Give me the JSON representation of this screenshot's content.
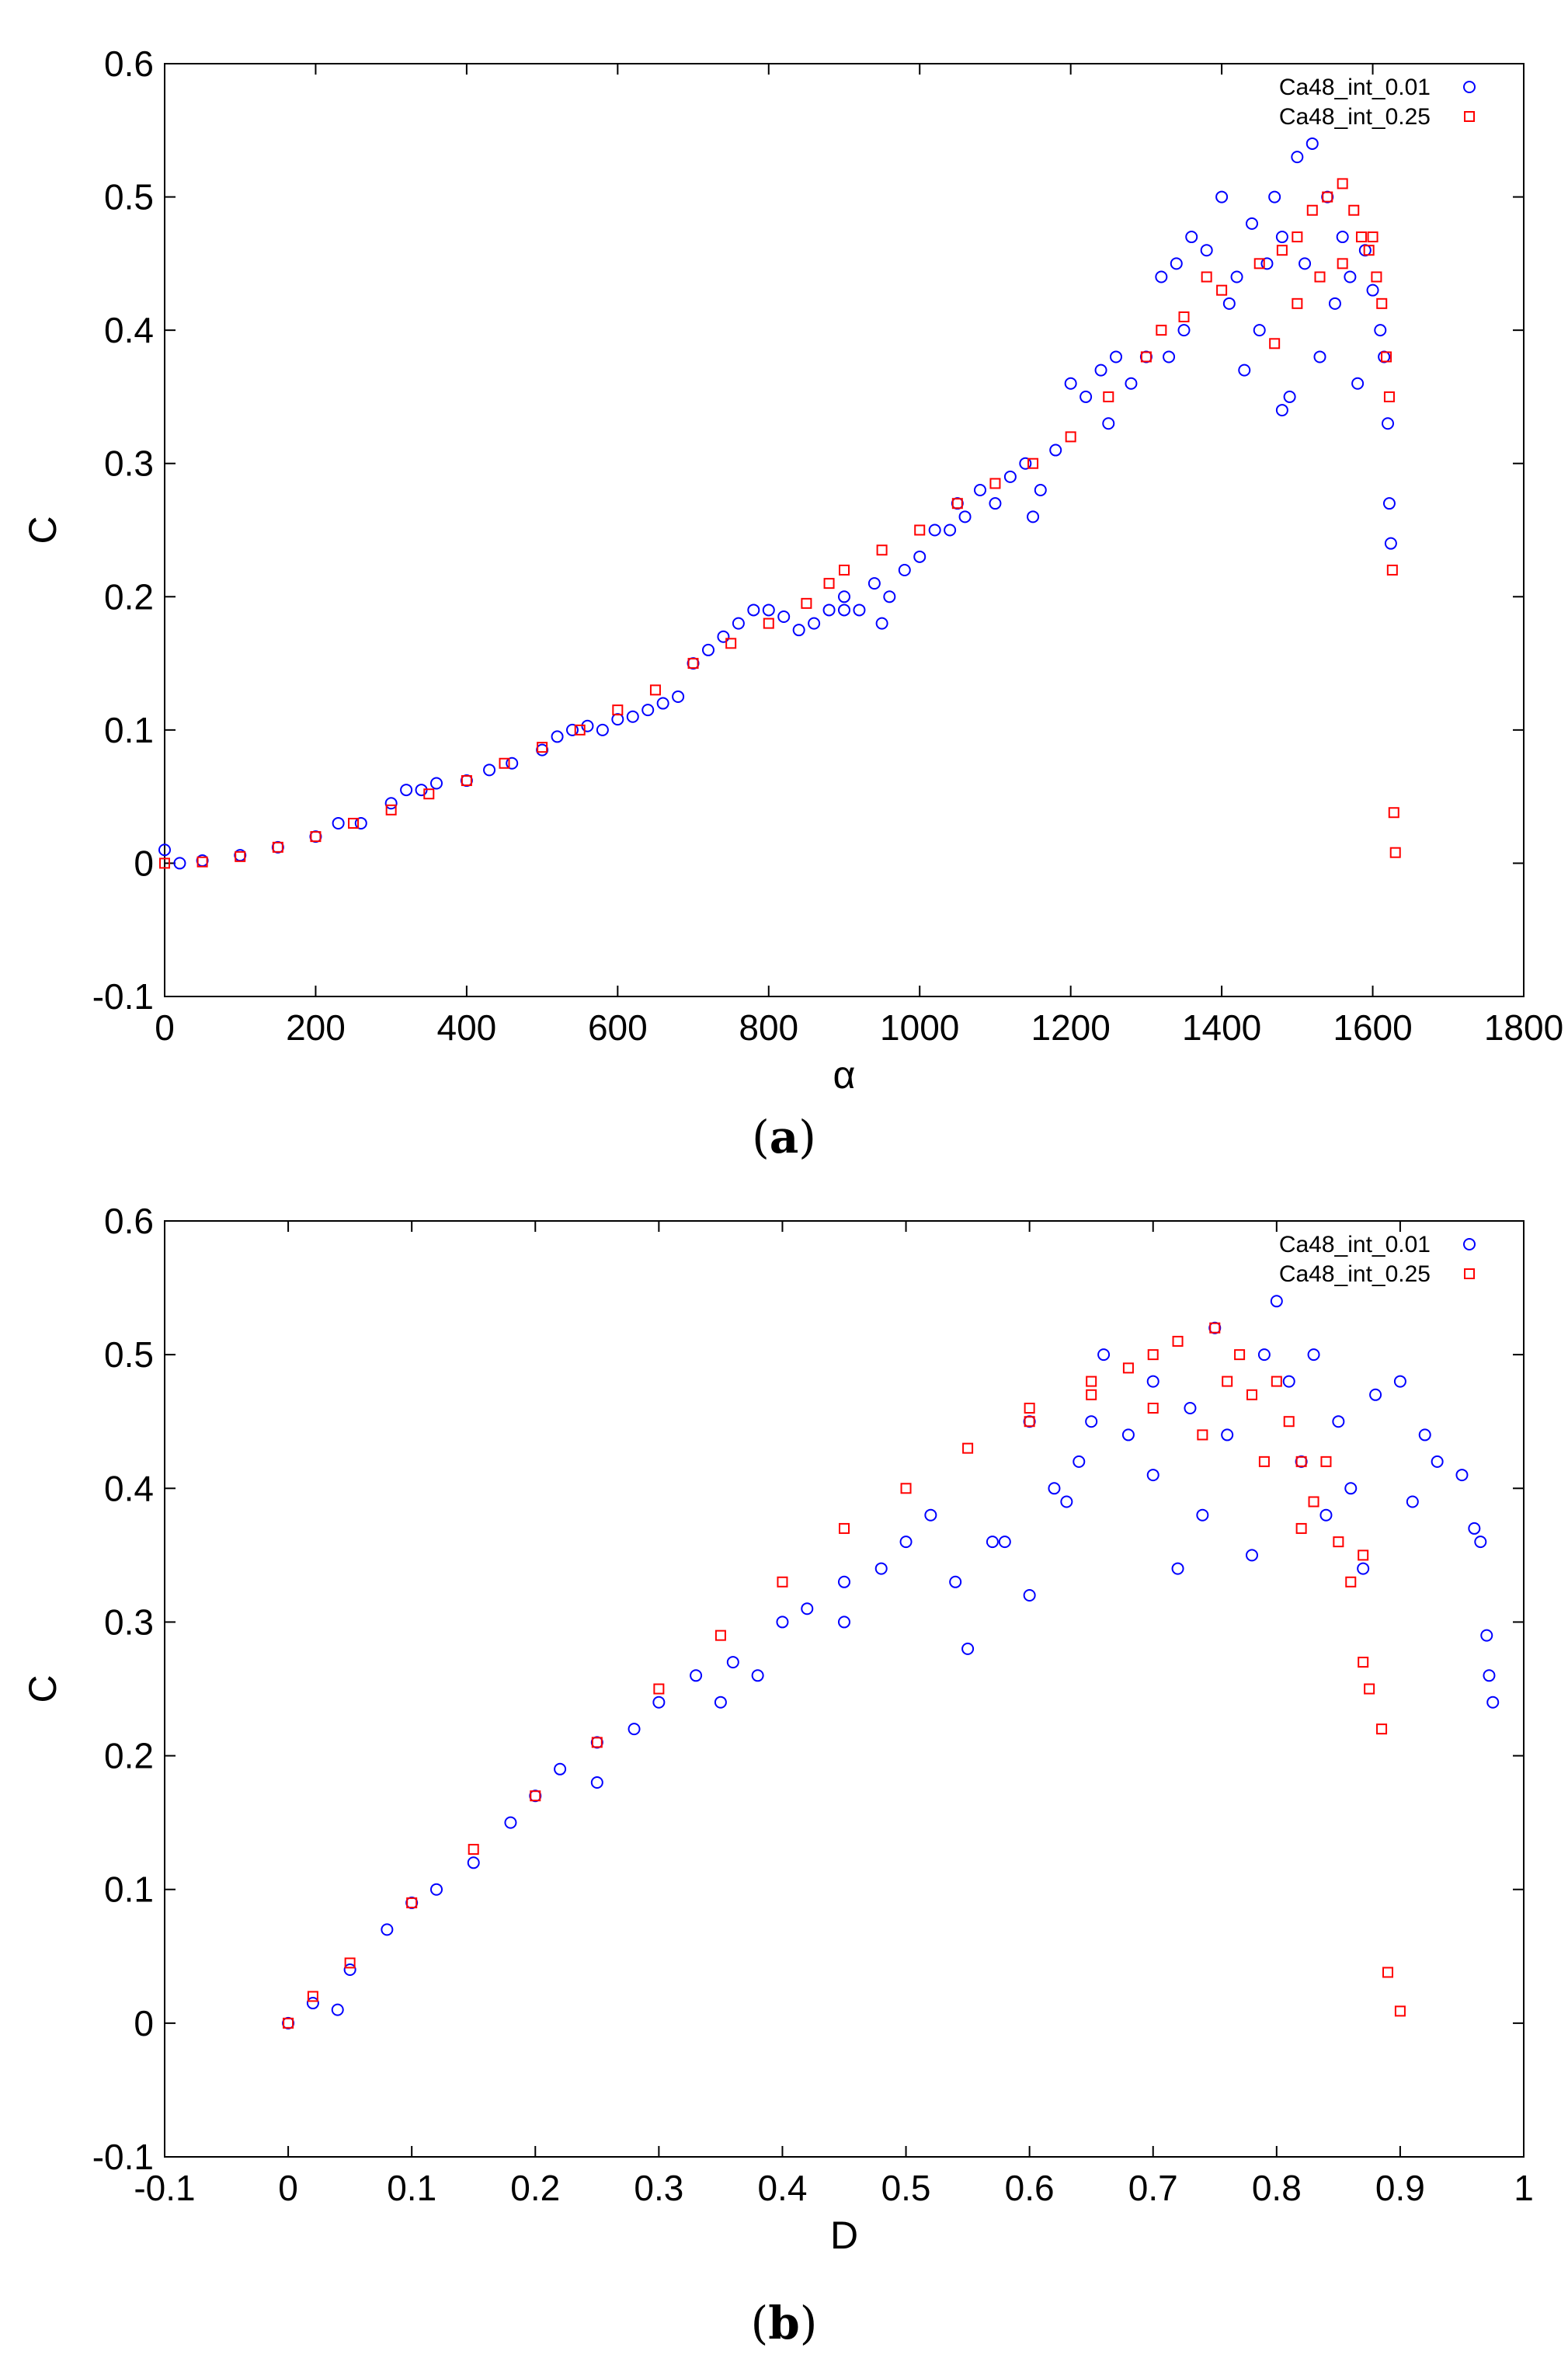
{
  "chart_data": [
    {
      "id": "a",
      "type": "scatter",
      "caption_letter": "a",
      "xlabel": "α",
      "ylabel": "C",
      "xlim": [
        0,
        1800
      ],
      "ylim": [
        -0.1,
        0.6
      ],
      "xticks": [
        0,
        200,
        400,
        600,
        800,
        1000,
        1200,
        1400,
        1600,
        1800
      ],
      "yticks": [
        -0.1,
        0,
        0.1,
        0.2,
        0.3,
        0.4,
        0.5,
        0.6
      ],
      "xtick_labels": [
        "0",
        "200",
        "400",
        "600",
        "800",
        "1000",
        "1200",
        "1400",
        "1600",
        "1800"
      ],
      "ytick_labels": [
        "-0.1",
        "0",
        "0.1",
        "0.2",
        "0.3",
        "0.4",
        "0.5",
        "0.6"
      ],
      "grid": false,
      "legend_position": "top-right",
      "series": [
        {
          "name": "Ca48_int_0.01",
          "marker": "circle",
          "color": "#0000ff",
          "points": [
            [
              0,
              0.01
            ],
            [
              20,
              0.0
            ],
            [
              50,
              0.002
            ],
            [
              100,
              0.006
            ],
            [
              150,
              0.012
            ],
            [
              200,
              0.02
            ],
            [
              230,
              0.03
            ],
            [
              260,
              0.03
            ],
            [
              300,
              0.045
            ],
            [
              320,
              0.055
            ],
            [
              340,
              0.055
            ],
            [
              360,
              0.06
            ],
            [
              400,
              0.062
            ],
            [
              430,
              0.07
            ],
            [
              460,
              0.075
            ],
            [
              500,
              0.085
            ],
            [
              520,
              0.095
            ],
            [
              540,
              0.1
            ],
            [
              560,
              0.103
            ],
            [
              580,
              0.1
            ],
            [
              600,
              0.108
            ],
            [
              620,
              0.11
            ],
            [
              640,
              0.115
            ],
            [
              660,
              0.12
            ],
            [
              680,
              0.125
            ],
            [
              700,
              0.15
            ],
            [
              720,
              0.16
            ],
            [
              740,
              0.17
            ],
            [
              760,
              0.18
            ],
            [
              780,
              0.19
            ],
            [
              800,
              0.19
            ],
            [
              820,
              0.185
            ],
            [
              840,
              0.175
            ],
            [
              860,
              0.18
            ],
            [
              880,
              0.19
            ],
            [
              900,
              0.2
            ],
            [
              920,
              0.19
            ],
            [
              940,
              0.21
            ],
            [
              960,
              0.2
            ],
            [
              980,
              0.22
            ],
            [
              1000,
              0.23
            ],
            [
              1020,
              0.25
            ],
            [
              1040,
              0.25
            ],
            [
              1060,
              0.26
            ],
            [
              1080,
              0.28
            ],
            [
              1100,
              0.27
            ],
            [
              1120,
              0.29
            ],
            [
              1140,
              0.3
            ],
            [
              1160,
              0.28
            ],
            [
              1180,
              0.31
            ],
            [
              1200,
              0.36
            ],
            [
              1220,
              0.35
            ],
            [
              1240,
              0.37
            ],
            [
              1260,
              0.38
            ],
            [
              1280,
              0.36
            ],
            [
              1300,
              0.38
            ],
            [
              1320,
              0.44
            ],
            [
              1330,
              0.38
            ],
            [
              1340,
              0.45
            ],
            [
              1360,
              0.47
            ],
            [
              1380,
              0.46
            ],
            [
              1400,
              0.5
            ],
            [
              1410,
              0.42
            ],
            [
              1420,
              0.44
            ],
            [
              1440,
              0.48
            ],
            [
              1450,
              0.4
            ],
            [
              1460,
              0.45
            ],
            [
              1470,
              0.5
            ],
            [
              1480,
              0.47
            ],
            [
              1490,
              0.35
            ],
            [
              1500,
              0.53
            ],
            [
              1510,
              0.45
            ],
            [
              1520,
              0.54
            ],
            [
              1530,
              0.38
            ],
            [
              1540,
              0.5
            ],
            [
              1550,
              0.42
            ],
            [
              1560,
              0.47
            ],
            [
              1570,
              0.44
            ],
            [
              1580,
              0.36
            ],
            [
              1590,
              0.46
            ],
            [
              1600,
              0.43
            ],
            [
              1610,
              0.4
            ],
            [
              1615,
              0.38
            ],
            [
              1620,
              0.33
            ],
            [
              1622,
              0.27
            ],
            [
              1624,
              0.24
            ],
            [
              1050,
              0.27
            ],
            [
              1150,
              0.26
            ],
            [
              1250,
              0.33
            ],
            [
              1350,
              0.4
            ],
            [
              1430,
              0.37
            ],
            [
              1480,
              0.34
            ],
            [
              900,
              0.19
            ],
            [
              950,
              0.18
            ]
          ]
        },
        {
          "name": "Ca48_int_0.25",
          "marker": "square",
          "color": "#ff0000",
          "points": [
            [
              0,
              0.0
            ],
            [
              50,
              0.001
            ],
            [
              100,
              0.005
            ],
            [
              150,
              0.012
            ],
            [
              200,
              0.02
            ],
            [
              250,
              0.03
            ],
            [
              300,
              0.04
            ],
            [
              350,
              0.052
            ],
            [
              400,
              0.062
            ],
            [
              450,
              0.075
            ],
            [
              500,
              0.087
            ],
            [
              550,
              0.1
            ],
            [
              600,
              0.115
            ],
            [
              650,
              0.13
            ],
            [
              700,
              0.15
            ],
            [
              750,
              0.165
            ],
            [
              800,
              0.18
            ],
            [
              850,
              0.195
            ],
            [
              880,
              0.21
            ],
            [
              900,
              0.22
            ],
            [
              950,
              0.235
            ],
            [
              1000,
              0.25
            ],
            [
              1050,
              0.27
            ],
            [
              1100,
              0.285
            ],
            [
              1150,
              0.3
            ],
            [
              1200,
              0.32
            ],
            [
              1250,
              0.35
            ],
            [
              1300,
              0.38
            ],
            [
              1350,
              0.41
            ],
            [
              1400,
              0.43
            ],
            [
              1450,
              0.45
            ],
            [
              1480,
              0.46
            ],
            [
              1500,
              0.47
            ],
            [
              1520,
              0.49
            ],
            [
              1540,
              0.5
            ],
            [
              1560,
              0.51
            ],
            [
              1575,
              0.49
            ],
            [
              1585,
              0.47
            ],
            [
              1595,
              0.46
            ],
            [
              1605,
              0.44
            ],
            [
              1612,
              0.42
            ],
            [
              1618,
              0.38
            ],
            [
              1622,
              0.35
            ],
            [
              1626,
              0.22
            ],
            [
              1628,
              0.038
            ],
            [
              1630,
              0.008
            ],
            [
              1470,
              0.39
            ],
            [
              1500,
              0.42
            ],
            [
              1530,
              0.44
            ],
            [
              1560,
              0.45
            ],
            [
              1600,
              0.47
            ],
            [
              1320,
              0.4
            ],
            [
              1380,
              0.44
            ]
          ]
        }
      ]
    },
    {
      "id": "b",
      "type": "scatter",
      "caption_letter": "b",
      "xlabel": "D",
      "ylabel": "C",
      "xlim": [
        -0.1,
        1
      ],
      "ylim": [
        -0.1,
        0.6
      ],
      "xticks": [
        -0.1,
        0,
        0.1,
        0.2,
        0.3,
        0.4,
        0.5,
        0.6,
        0.7,
        0.8,
        0.9,
        1
      ],
      "yticks": [
        -0.1,
        0,
        0.1,
        0.2,
        0.3,
        0.4,
        0.5,
        0.6
      ],
      "xtick_labels": [
        "-0.1",
        "0",
        "0.1",
        "0.2",
        "0.3",
        "0.4",
        "0.5",
        "0.6",
        "0.7",
        "0.8",
        "0.9",
        "1"
      ],
      "ytick_labels": [
        "-0.1",
        "0",
        "0.1",
        "0.2",
        "0.3",
        "0.4",
        "0.5",
        "0.6"
      ],
      "grid": false,
      "legend_position": "top-right",
      "series": [
        {
          "name": "Ca48_int_0.01",
          "marker": "circle",
          "color": "#0000ff",
          "points": [
            [
              0,
              0.0
            ],
            [
              0.02,
              0.015
            ],
            [
              0.04,
              0.01
            ],
            [
              0.05,
              0.04
            ],
            [
              0.08,
              0.07
            ],
            [
              0.1,
              0.09
            ],
            [
              0.12,
              0.1
            ],
            [
              0.15,
              0.12
            ],
            [
              0.18,
              0.15
            ],
            [
              0.2,
              0.17
            ],
            [
              0.22,
              0.19
            ],
            [
              0.25,
              0.21
            ],
            [
              0.28,
              0.22
            ],
            [
              0.3,
              0.24
            ],
            [
              0.33,
              0.26
            ],
            [
              0.36,
              0.27
            ],
            [
              0.38,
              0.26
            ],
            [
              0.4,
              0.3
            ],
            [
              0.42,
              0.31
            ],
            [
              0.45,
              0.33
            ],
            [
              0.48,
              0.34
            ],
            [
              0.5,
              0.36
            ],
            [
              0.52,
              0.38
            ],
            [
              0.54,
              0.33
            ],
            [
              0.55,
              0.28
            ],
            [
              0.57,
              0.36
            ],
            [
              0.6,
              0.32
            ],
            [
              0.62,
              0.4
            ],
            [
              0.64,
              0.42
            ],
            [
              0.65,
              0.45
            ],
            [
              0.66,
              0.5
            ],
            [
              0.68,
              0.44
            ],
            [
              0.7,
              0.48
            ],
            [
              0.72,
              0.34
            ],
            [
              0.74,
              0.38
            ],
            [
              0.75,
              0.52
            ],
            [
              0.76,
              0.44
            ],
            [
              0.78,
              0.35
            ],
            [
              0.8,
              0.54
            ],
            [
              0.81,
              0.48
            ],
            [
              0.82,
              0.42
            ],
            [
              0.83,
              0.5
            ],
            [
              0.84,
              0.38
            ],
            [
              0.85,
              0.45
            ],
            [
              0.86,
              0.4
            ],
            [
              0.87,
              0.34
            ],
            [
              0.88,
              0.47
            ],
            [
              0.9,
              0.48
            ],
            [
              0.91,
              0.39
            ],
            [
              0.92,
              0.44
            ],
            [
              0.93,
              0.42
            ],
            [
              0.95,
              0.41
            ],
            [
              0.96,
              0.37
            ],
            [
              0.965,
              0.36
            ],
            [
              0.97,
              0.29
            ],
            [
              0.972,
              0.26
            ],
            [
              0.975,
              0.24
            ],
            [
              0.6,
              0.45
            ],
            [
              0.7,
              0.41
            ],
            [
              0.45,
              0.3
            ],
            [
              0.35,
              0.24
            ],
            [
              0.25,
              0.18
            ],
            [
              0.58,
              0.36
            ],
            [
              0.63,
              0.39
            ],
            [
              0.73,
              0.46
            ],
            [
              0.79,
              0.5
            ]
          ]
        },
        {
          "name": "Ca48_int_0.25",
          "marker": "square",
          "color": "#ff0000",
          "points": [
            [
              0,
              0.0
            ],
            [
              0.02,
              0.02
            ],
            [
              0.05,
              0.045
            ],
            [
              0.1,
              0.09
            ],
            [
              0.15,
              0.13
            ],
            [
              0.2,
              0.17
            ],
            [
              0.25,
              0.21
            ],
            [
              0.3,
              0.25
            ],
            [
              0.35,
              0.29
            ],
            [
              0.4,
              0.33
            ],
            [
              0.45,
              0.37
            ],
            [
              0.5,
              0.4
            ],
            [
              0.55,
              0.43
            ],
            [
              0.6,
              0.45
            ],
            [
              0.65,
              0.47
            ],
            [
              0.68,
              0.49
            ],
            [
              0.7,
              0.5
            ],
            [
              0.72,
              0.51
            ],
            [
              0.75,
              0.52
            ],
            [
              0.77,
              0.5
            ],
            [
              0.78,
              0.47
            ],
            [
              0.8,
              0.48
            ],
            [
              0.81,
              0.45
            ],
            [
              0.82,
              0.42
            ],
            [
              0.83,
              0.39
            ],
            [
              0.84,
              0.42
            ],
            [
              0.85,
              0.36
            ],
            [
              0.86,
              0.33
            ],
            [
              0.87,
              0.35
            ],
            [
              0.87,
              0.27
            ],
            [
              0.875,
              0.25
            ],
            [
              0.885,
              0.22
            ],
            [
              0.89,
              0.038
            ],
            [
              0.9,
              0.009
            ],
            [
              0.6,
              0.46
            ],
            [
              0.65,
              0.48
            ],
            [
              0.7,
              0.46
            ],
            [
              0.74,
              0.44
            ],
            [
              0.76,
              0.48
            ],
            [
              0.79,
              0.42
            ],
            [
              0.82,
              0.37
            ]
          ]
        }
      ]
    }
  ]
}
